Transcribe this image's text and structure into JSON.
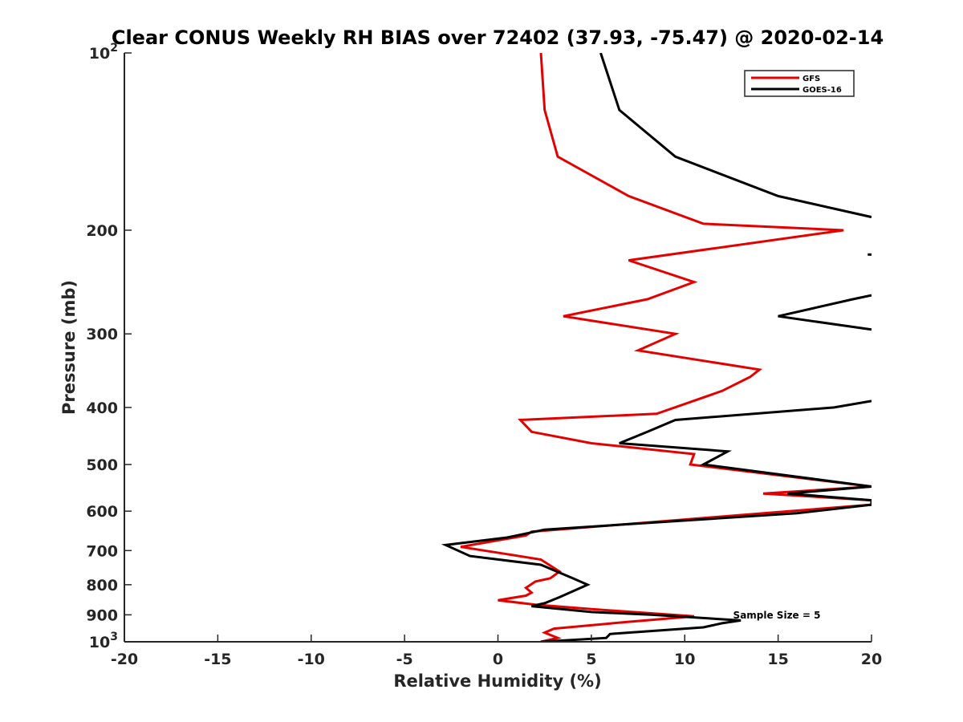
{
  "chart_data": {
    "type": "line",
    "title": "Clear CONUS Weekly RH BIAS over 72402 (37.93, -75.47) @ 2020-02-14",
    "xlabel": "Relative Humidity (%)",
    "ylabel": "Pressure (mb)",
    "xlim": [
      -20,
      20
    ],
    "ylim": [
      100,
      1000
    ],
    "yscale": "log",
    "y_reversed": true,
    "x_ticks": [
      -20,
      -15,
      -10,
      -5,
      0,
      5,
      10,
      15,
      20
    ],
    "x_tick_labels": [
      "-20",
      "-15",
      "-10",
      "-5",
      "0",
      "5",
      "10",
      "15",
      "20"
    ],
    "y_ticks": [
      100,
      200,
      300,
      400,
      500,
      600,
      700,
      800,
      900,
      1000
    ],
    "y_tick_labels": [
      {
        "base": "10",
        "exp": "2"
      },
      {
        "base": "200",
        "exp": ""
      },
      {
        "base": "300",
        "exp": ""
      },
      {
        "base": "400",
        "exp": ""
      },
      {
        "base": "500",
        "exp": ""
      },
      {
        "base": "600",
        "exp": ""
      },
      {
        "base": "700",
        "exp": ""
      },
      {
        "base": "800",
        "exp": ""
      },
      {
        "base": "900",
        "exp": ""
      },
      {
        "base": "10",
        "exp": "3"
      }
    ],
    "legend_position": "top-right",
    "annotation": "Sample Size = 5",
    "series": [
      {
        "name": "GFS",
        "color": "#e50000",
        "points": [
          [
            2.3,
            100
          ],
          [
            2.5,
            125
          ],
          [
            3.2,
            150
          ],
          [
            7.0,
            175
          ],
          [
            11.0,
            195
          ],
          [
            18.5,
            200
          ],
          [
            7.0,
            225
          ],
          [
            10.5,
            245
          ],
          [
            8.0,
            262
          ],
          [
            3.5,
            280
          ],
          [
            9.5,
            300
          ],
          [
            7.5,
            320
          ],
          [
            14.0,
            345
          ],
          [
            13.5,
            355
          ],
          [
            12.0,
            375
          ],
          [
            8.5,
            410
          ],
          [
            1.2,
            420
          ],
          [
            1.8,
            440
          ],
          [
            5.0,
            460
          ],
          [
            10.5,
            480
          ],
          [
            10.3,
            500
          ],
          [
            20.0,
            545
          ],
          [
            14.2,
            560
          ],
          [
            20.0,
            575
          ],
          [
            20.0,
            585
          ],
          [
            10.0,
            620
          ],
          [
            1.8,
            650
          ],
          [
            1.5,
            660
          ],
          [
            -2.0,
            690
          ],
          [
            0.5,
            710
          ],
          [
            2.3,
            725
          ],
          [
            3.3,
            760
          ],
          [
            2.8,
            780
          ],
          [
            2.0,
            790
          ],
          [
            1.5,
            810
          ],
          [
            1.8,
            825
          ],
          [
            1.5,
            835
          ],
          [
            0.0,
            850
          ],
          [
            2.0,
            865
          ],
          [
            5.0,
            880
          ],
          [
            10.5,
            905
          ],
          [
            7.0,
            925
          ],
          [
            3.0,
            950
          ],
          [
            2.5,
            965
          ],
          [
            3.2,
            985
          ],
          [
            2.3,
            1000
          ]
        ]
      },
      {
        "name": "GOES-16",
        "color": "#000000",
        "segments": [
          [
            [
              5.5,
              100
            ],
            [
              6.5,
              125
            ],
            [
              9.5,
              150
            ],
            [
              15.0,
              175
            ],
            [
              20.0,
              190
            ]
          ],
          [
            [
              19.8,
              220
            ],
            [
              20.0,
              220
            ]
          ],
          [
            [
              20.0,
              258
            ],
            [
              19.0,
              262
            ],
            [
              15.0,
              280
            ],
            [
              20.0,
              295
            ]
          ],
          [
            [
              20.0,
              390
            ],
            [
              18.0,
              400
            ],
            [
              9.5,
              420
            ],
            [
              8.0,
              440
            ],
            [
              6.5,
              460
            ],
            [
              12.3,
              475
            ],
            [
              11.0,
              500
            ],
            [
              20.0,
              545
            ],
            [
              15.5,
              560
            ],
            [
              20.0,
              575
            ],
            [
              20.0,
              585
            ],
            [
              16.0,
              605
            ],
            [
              2.5,
              645
            ],
            [
              0.5,
              665
            ],
            [
              -2.8,
              685
            ],
            [
              -1.5,
              715
            ],
            [
              2.3,
              740
            ],
            [
              4.0,
              780
            ],
            [
              4.8,
              800
            ],
            [
              3.3,
              840
            ],
            [
              2.5,
              860
            ],
            [
              1.8,
              870
            ],
            [
              5.0,
              890
            ],
            [
              8.3,
              900
            ],
            [
              13.0,
              920
            ],
            [
              12.0,
              930
            ],
            [
              11.0,
              945
            ],
            [
              6.0,
              970
            ],
            [
              5.8,
              985
            ],
            [
              2.3,
              1000
            ]
          ]
        ]
      }
    ]
  }
}
